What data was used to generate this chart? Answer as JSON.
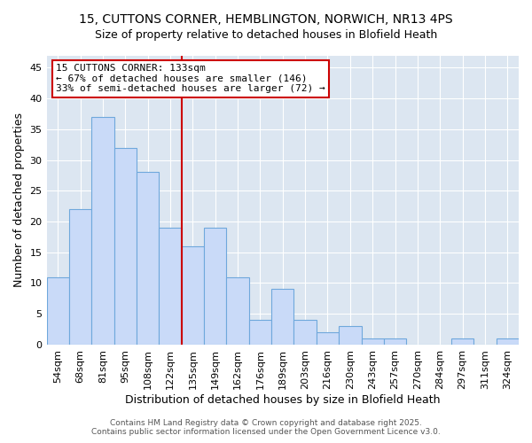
{
  "title_line1": "15, CUTTONS CORNER, HEMBLINGTON, NORWICH, NR13 4PS",
  "title_line2": "Size of property relative to detached houses in Blofield Heath",
  "xlabel": "Distribution of detached houses by size in Blofield Heath",
  "ylabel": "Number of detached properties",
  "bar_labels": [
    "54sqm",
    "68sqm",
    "81sqm",
    "95sqm",
    "108sqm",
    "122sqm",
    "135sqm",
    "149sqm",
    "162sqm",
    "176sqm",
    "189sqm",
    "203sqm",
    "216sqm",
    "230sqm",
    "243sqm",
    "257sqm",
    "270sqm",
    "284sqm",
    "297sqm",
    "311sqm",
    "324sqm"
  ],
  "bar_values": [
    11,
    22,
    37,
    32,
    28,
    19,
    16,
    19,
    11,
    4,
    9,
    4,
    2,
    3,
    1,
    1,
    0,
    0,
    1,
    0,
    1
  ],
  "bar_color": "#c9daf8",
  "bar_edge_color": "#6fa8dc",
  "vline_color": "#cc0000",
  "annotation_text": "15 CUTTONS CORNER: 133sqm\n← 67% of detached houses are smaller (146)\n33% of semi-detached houses are larger (72) →",
  "annotation_box_color": "white",
  "annotation_box_edge_color": "#cc0000",
  "ylim": [
    0,
    47
  ],
  "yticks": [
    0,
    5,
    10,
    15,
    20,
    25,
    30,
    35,
    40,
    45
  ],
  "footnote": "Contains HM Land Registry data © Crown copyright and database right 2025.\nContains public sector information licensed under the Open Government Licence v3.0.",
  "fig_bg_color": "#ffffff",
  "plot_bg_color": "#dce6f1",
  "grid_color": "#ffffff",
  "title_fontsize": 11,
  "subtitle_fontsize": 9
}
